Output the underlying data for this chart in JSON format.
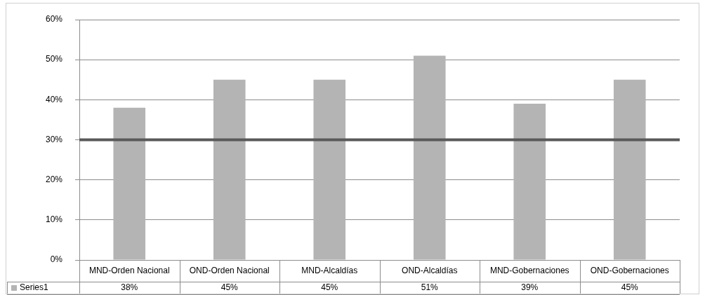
{
  "chart_data": {
    "type": "bar",
    "categories": [
      "MND-Orden Nacional",
      "OND-Orden Nacional",
      "MND-Alcaldías",
      "OND-Alcaldías",
      "MND-Gobernaciones",
      "OND-Gobernaciones"
    ],
    "series": [
      {
        "name": "Series1",
        "color": "#b4b4b4",
        "values": [
          38,
          45,
          45,
          51,
          39,
          45
        ],
        "value_labels": [
          "38%",
          "45%",
          "45%",
          "51%",
          "39%",
          "45%"
        ]
      }
    ],
    "ylim": [
      0,
      60
    ],
    "yticks": [
      {
        "value": 0,
        "label": "0%"
      },
      {
        "value": 10,
        "label": "10%"
      },
      {
        "value": 20,
        "label": "20%"
      },
      {
        "value": 30,
        "label": "30%"
      },
      {
        "value": 40,
        "label": "40%"
      },
      {
        "value": 50,
        "label": "50%"
      },
      {
        "value": 60,
        "label": "60%"
      }
    ],
    "grid": "y",
    "legend": "bottom",
    "ref_lines": [
      {
        "axis": "y",
        "value": 30,
        "color": "#595959"
      }
    ]
  }
}
